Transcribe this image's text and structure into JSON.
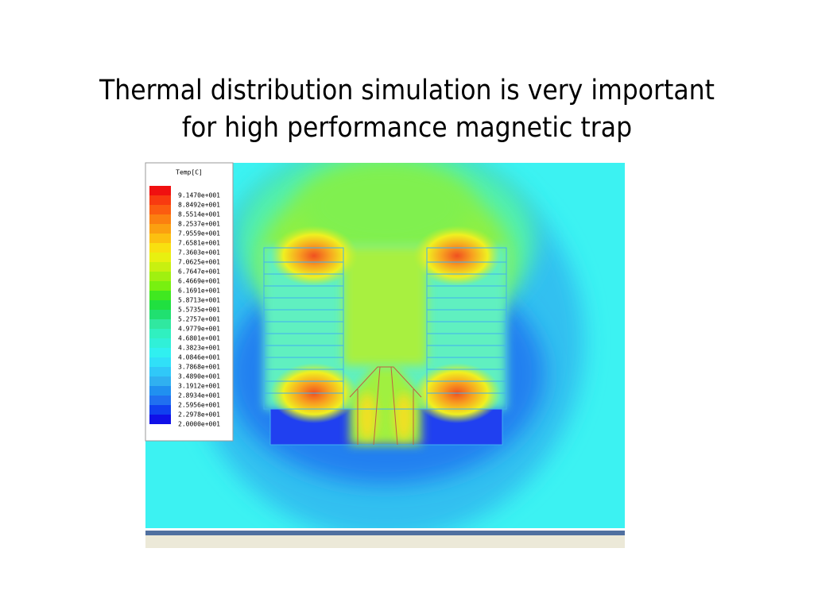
{
  "slide": {
    "title_lines": [
      "Thermal distribution simulation is very important",
      "for high performance magnetic trap"
    ],
    "legend": {
      "title": "Temp[C]",
      "labels": [
        "9.1470e+001",
        "8.8492e+001",
        "8.5514e+001",
        "8.2537e+001",
        "7.9559e+001",
        "7.6581e+001",
        "7.3603e+001",
        "7.0625e+001",
        "6.7647e+001",
        "6.4669e+001",
        "6.1691e+001",
        "5.8713e+001",
        "5.5735e+001",
        "5.2757e+001",
        "4.9779e+001",
        "4.6801e+001",
        "4.3823e+001",
        "4.0846e+001",
        "3.7868e+001",
        "3.4890e+001",
        "3.1912e+001",
        "2.8934e+001",
        "2.5956e+001",
        "2.2978e+001",
        "2.0000e+001"
      ],
      "colors": [
        "#f01010",
        "#f83a10",
        "#fb5c10",
        "#fb8010",
        "#fba010",
        "#fcc010",
        "#f8e010",
        "#e8f010",
        "#c8f010",
        "#a0f010",
        "#78f010",
        "#40e820",
        "#20e040",
        "#20e070",
        "#30e8a0",
        "#30f0c0",
        "#30f0d8",
        "#30f0f0",
        "#30e0f8",
        "#30c8f8",
        "#30b0f0",
        "#2090f0",
        "#2070f0",
        "#1040f0",
        "#1010e8"
      ]
    }
  }
}
